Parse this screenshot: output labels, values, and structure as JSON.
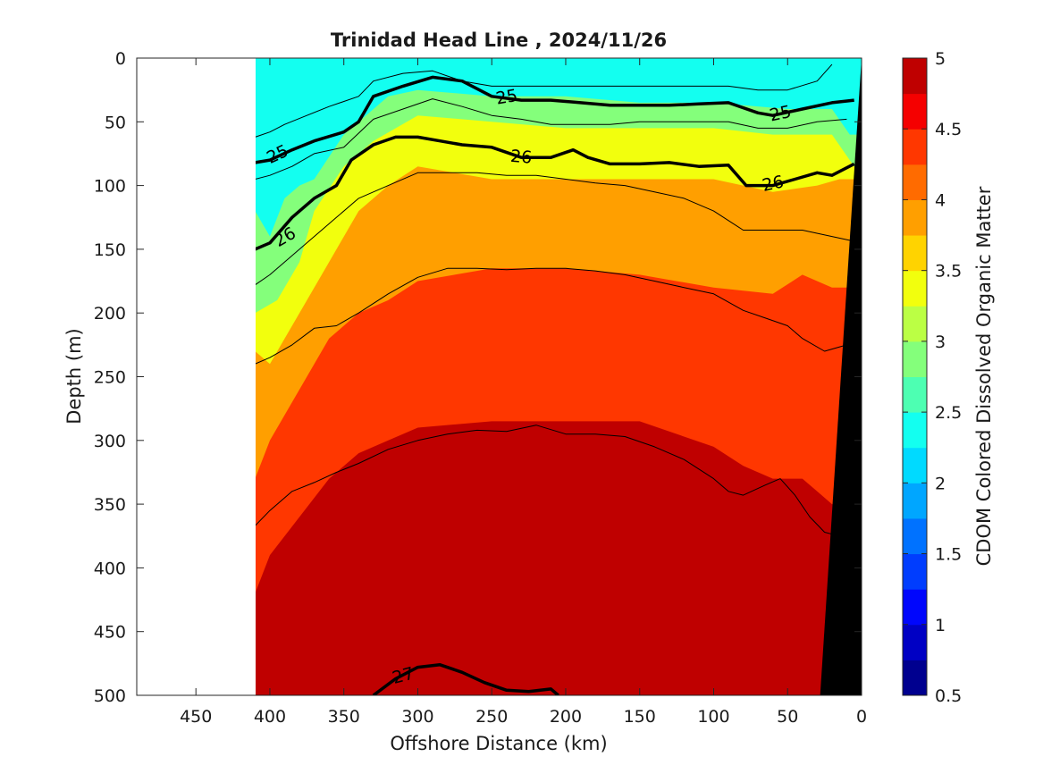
{
  "chart_data": {
    "type": "heatmap",
    "title": "Trinidad Head Line , 2024/11/26",
    "xlabel": "Offshore Distance (km)",
    "ylabel": "Depth (m)",
    "colorbar_label": "CDOM Colored Dissolved Organic Matter",
    "xlim": [
      490,
      0
    ],
    "ylim": [
      500,
      0
    ],
    "x_reversed": true,
    "y_reversed": true,
    "x_ticks": [
      450,
      400,
      350,
      300,
      250,
      200,
      150,
      100,
      50,
      0
    ],
    "y_ticks": [
      0,
      50,
      100,
      150,
      200,
      250,
      300,
      350,
      400,
      450,
      500
    ],
    "color_ticks": [
      0.5,
      1,
      1.5,
      2,
      2.5,
      3,
      3.5,
      4,
      4.5,
      5
    ],
    "color_range": [
      0.5,
      5
    ],
    "color_step": 0.25,
    "colormap": [
      "#00008f",
      "#0000c4",
      "#0006fd",
      "#003dfe",
      "#0072ff",
      "#00a6ff",
      "#00daff",
      "#13fff0",
      "#4dffb2",
      "#84ff7b",
      "#bbff44",
      "#f2ff0d",
      "#ffd300",
      "#ff9f00",
      "#ff6b00",
      "#ff3700",
      "#f50000",
      "#bf0000",
      "#870000"
    ],
    "data_start_km": 410,
    "bottom_mask": {
      "x_top_km": 0,
      "x_bottom_km": 28,
      "color": "#000000"
    },
    "cdom_layers": [
      {
        "value": 2.75,
        "depth_profile": [
          [
            410,
            0
          ],
          [
            410,
            120
          ],
          [
            400,
            140
          ],
          [
            390,
            110
          ],
          [
            380,
            100
          ],
          [
            370,
            95
          ],
          [
            350,
            60
          ],
          [
            340,
            50
          ],
          [
            320,
            30
          ],
          [
            300,
            25
          ],
          [
            250,
            30
          ],
          [
            200,
            30
          ],
          [
            150,
            35
          ],
          [
            100,
            35
          ],
          [
            50,
            40
          ],
          [
            20,
            40
          ],
          [
            8,
            60
          ],
          [
            0,
            60
          ]
        ]
      },
      {
        "value": 3.25,
        "depth_profile": [
          [
            410,
            60
          ],
          [
            410,
            200
          ],
          [
            395,
            190
          ],
          [
            380,
            160
          ],
          [
            370,
            120
          ],
          [
            350,
            85
          ],
          [
            330,
            65
          ],
          [
            300,
            45
          ],
          [
            250,
            50
          ],
          [
            200,
            55
          ],
          [
            150,
            55
          ],
          [
            100,
            55
          ],
          [
            60,
            60
          ],
          [
            20,
            60
          ],
          [
            5,
            85
          ],
          [
            0,
            85
          ]
        ]
      },
      {
        "value": 3.75,
        "depth_profile": [
          [
            410,
            230
          ],
          [
            400,
            240
          ],
          [
            380,
            200
          ],
          [
            360,
            160
          ],
          [
            340,
            120
          ],
          [
            320,
            100
          ],
          [
            300,
            85
          ],
          [
            250,
            95
          ],
          [
            200,
            95
          ],
          [
            150,
            95
          ],
          [
            100,
            95
          ],
          [
            60,
            105
          ],
          [
            30,
            100
          ],
          [
            15,
            95
          ],
          [
            0,
            95
          ]
        ]
      },
      {
        "value": 4.25,
        "depth_profile": [
          [
            410,
            330
          ],
          [
            400,
            300
          ],
          [
            380,
            260
          ],
          [
            360,
            220
          ],
          [
            340,
            200
          ],
          [
            320,
            190
          ],
          [
            300,
            175
          ],
          [
            250,
            165
          ],
          [
            200,
            165
          ],
          [
            150,
            170
          ],
          [
            100,
            180
          ],
          [
            60,
            185
          ],
          [
            40,
            170
          ],
          [
            20,
            180
          ],
          [
            0,
            180
          ]
        ]
      },
      {
        "value": 4.75,
        "depth_profile": [
          [
            410,
            420
          ],
          [
            400,
            390
          ],
          [
            380,
            360
          ],
          [
            360,
            330
          ],
          [
            340,
            310
          ],
          [
            320,
            300
          ],
          [
            300,
            290
          ],
          [
            250,
            285
          ],
          [
            200,
            285
          ],
          [
            150,
            285
          ],
          [
            100,
            305
          ],
          [
            80,
            320
          ],
          [
            60,
            330
          ],
          [
            40,
            330
          ],
          [
            30,
            340
          ],
          [
            20,
            350
          ],
          [
            0,
            350
          ]
        ]
      }
    ],
    "density_contours": [
      {
        "level": "",
        "bold": false,
        "points": [
          [
            410,
            62
          ],
          [
            400,
            58
          ],
          [
            390,
            52
          ],
          [
            375,
            45
          ],
          [
            360,
            38
          ],
          [
            340,
            30
          ],
          [
            330,
            18
          ],
          [
            310,
            12
          ],
          [
            290,
            10
          ],
          [
            270,
            18
          ],
          [
            250,
            22
          ],
          [
            230,
            22
          ],
          [
            210,
            22
          ],
          [
            190,
            22
          ],
          [
            170,
            22
          ],
          [
            150,
            22
          ],
          [
            130,
            22
          ],
          [
            110,
            22
          ],
          [
            90,
            22
          ],
          [
            70,
            25
          ],
          [
            50,
            25
          ],
          [
            30,
            18
          ],
          [
            20,
            5
          ]
        ]
      },
      {
        "level": "25",
        "bold": true,
        "points": [
          [
            410,
            82
          ],
          [
            400,
            80
          ],
          [
            385,
            72
          ],
          [
            370,
            65
          ],
          [
            350,
            58
          ],
          [
            340,
            50
          ],
          [
            330,
            30
          ],
          [
            310,
            22
          ],
          [
            290,
            15
          ],
          [
            270,
            18
          ],
          [
            250,
            30
          ],
          [
            230,
            33
          ],
          [
            210,
            33
          ],
          [
            190,
            35
          ],
          [
            170,
            37
          ],
          [
            150,
            37
          ],
          [
            130,
            37
          ],
          [
            110,
            36
          ],
          [
            90,
            35
          ],
          [
            70,
            43
          ],
          [
            60,
            45
          ],
          [
            40,
            40
          ],
          [
            20,
            35
          ],
          [
            5,
            33
          ]
        ]
      },
      {
        "level": "",
        "bold": false,
        "points": [
          [
            410,
            95
          ],
          [
            400,
            92
          ],
          [
            385,
            85
          ],
          [
            370,
            75
          ],
          [
            350,
            70
          ],
          [
            330,
            48
          ],
          [
            310,
            40
          ],
          [
            290,
            32
          ],
          [
            270,
            38
          ],
          [
            250,
            45
          ],
          [
            230,
            48
          ],
          [
            210,
            52
          ],
          [
            190,
            52
          ],
          [
            170,
            52
          ],
          [
            150,
            50
          ],
          [
            130,
            50
          ],
          [
            110,
            50
          ],
          [
            90,
            50
          ],
          [
            70,
            55
          ],
          [
            50,
            55
          ],
          [
            30,
            50
          ],
          [
            10,
            48
          ]
        ]
      },
      {
        "level": "26",
        "bold": true,
        "points": [
          [
            410,
            150
          ],
          [
            400,
            145
          ],
          [
            385,
            125
          ],
          [
            370,
            110
          ],
          [
            355,
            100
          ],
          [
            345,
            80
          ],
          [
            330,
            68
          ],
          [
            315,
            62
          ],
          [
            300,
            62
          ],
          [
            285,
            65
          ],
          [
            270,
            68
          ],
          [
            250,
            70
          ],
          [
            230,
            78
          ],
          [
            210,
            78
          ],
          [
            195,
            72
          ],
          [
            185,
            78
          ],
          [
            170,
            83
          ],
          [
            150,
            83
          ],
          [
            130,
            82
          ],
          [
            110,
            85
          ],
          [
            90,
            84
          ],
          [
            78,
            100
          ],
          [
            60,
            100
          ],
          [
            45,
            95
          ],
          [
            30,
            90
          ],
          [
            20,
            92
          ],
          [
            5,
            83
          ]
        ]
      },
      {
        "level": "",
        "bold": false,
        "points": [
          [
            410,
            178
          ],
          [
            400,
            170
          ],
          [
            385,
            155
          ],
          [
            370,
            140
          ],
          [
            355,
            125
          ],
          [
            340,
            110
          ],
          [
            320,
            100
          ],
          [
            300,
            90
          ],
          [
            280,
            90
          ],
          [
            260,
            90
          ],
          [
            240,
            92
          ],
          [
            220,
            92
          ],
          [
            200,
            95
          ],
          [
            180,
            98
          ],
          [
            160,
            100
          ],
          [
            140,
            105
          ],
          [
            120,
            110
          ],
          [
            100,
            120
          ],
          [
            80,
            135
          ],
          [
            60,
            135
          ],
          [
            40,
            135
          ],
          [
            20,
            140
          ],
          [
            0,
            145
          ]
        ]
      },
      {
        "level": "",
        "bold": false,
        "points": [
          [
            410,
            240
          ],
          [
            400,
            235
          ],
          [
            385,
            225
          ],
          [
            370,
            212
          ],
          [
            355,
            210
          ],
          [
            340,
            200
          ],
          [
            320,
            185
          ],
          [
            300,
            172
          ],
          [
            280,
            165
          ],
          [
            260,
            165
          ],
          [
            240,
            166
          ],
          [
            220,
            165
          ],
          [
            200,
            165
          ],
          [
            180,
            167
          ],
          [
            160,
            170
          ],
          [
            140,
            175
          ],
          [
            120,
            180
          ],
          [
            100,
            185
          ],
          [
            80,
            198
          ],
          [
            65,
            204
          ],
          [
            50,
            210
          ],
          [
            40,
            220
          ],
          [
            25,
            230
          ],
          [
            10,
            225
          ],
          [
            0,
            225
          ]
        ]
      },
      {
        "level": "",
        "bold": false,
        "points": [
          [
            410,
            367
          ],
          [
            400,
            355
          ],
          [
            385,
            340
          ],
          [
            370,
            333
          ],
          [
            355,
            325
          ],
          [
            340,
            318
          ],
          [
            320,
            307
          ],
          [
            300,
            300
          ],
          [
            280,
            295
          ],
          [
            260,
            292
          ],
          [
            240,
            293
          ],
          [
            220,
            288
          ],
          [
            200,
            295
          ],
          [
            180,
            295
          ],
          [
            160,
            297
          ],
          [
            140,
            305
          ],
          [
            120,
            315
          ],
          [
            100,
            330
          ],
          [
            90,
            340
          ],
          [
            80,
            343
          ],
          [
            65,
            335
          ],
          [
            55,
            330
          ],
          [
            45,
            343
          ],
          [
            35,
            360
          ],
          [
            25,
            372
          ],
          [
            15,
            375
          ]
        ]
      },
      {
        "level": "27",
        "bold": true,
        "points": [
          [
            330,
            500
          ],
          [
            315,
            487
          ],
          [
            300,
            478
          ],
          [
            285,
            476
          ],
          [
            270,
            482
          ],
          [
            255,
            490
          ],
          [
            240,
            496
          ],
          [
            225,
            497
          ],
          [
            210,
            495
          ],
          [
            205,
            500
          ]
        ]
      }
    ],
    "contour_label_positions_km_m": [
      [
        586,
        25
      ],
      [
        320,
        75
      ],
      [
        572,
        170
      ],
      [
        330,
        145
      ],
      [
        876,
        45
      ],
      [
        858,
        100
      ],
      [
        462,
        486
      ]
    ]
  }
}
